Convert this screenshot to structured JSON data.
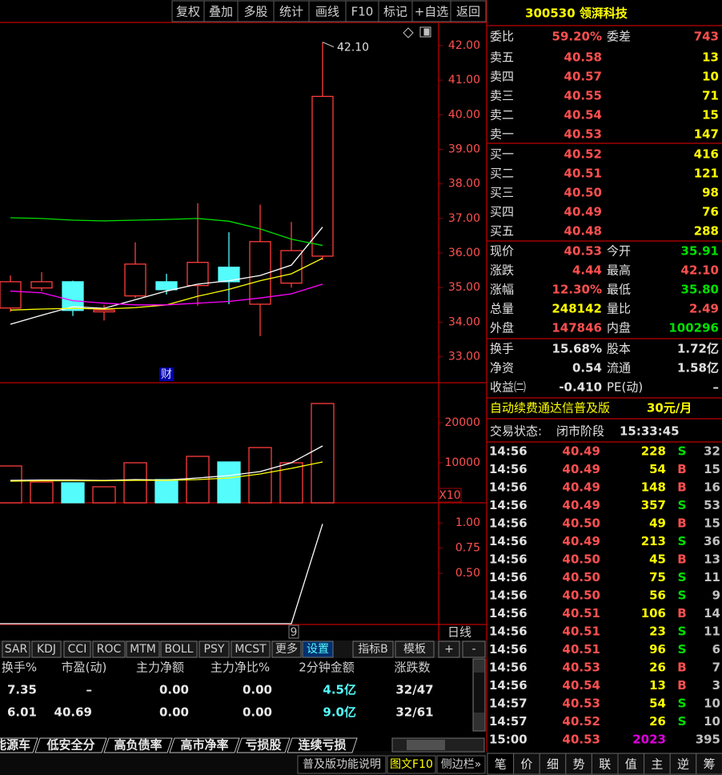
{
  "toolbar": [
    "复权",
    "叠加",
    "多股",
    "统计",
    "画线",
    "F10",
    "标记",
    "+自选",
    "返回"
  ],
  "kline": {
    "type": "candlestick",
    "high_label": "42.10",
    "event_marker": "财",
    "ylim": [
      32.25,
      42.67
    ],
    "yticks": [
      {
        "value": 42,
        "label": "42.00"
      },
      {
        "value": 41,
        "label": "41.00"
      },
      {
        "value": 40,
        "label": "40.00"
      },
      {
        "value": 39,
        "label": "39.00"
      },
      {
        "value": 38,
        "label": "38.00"
      },
      {
        "value": 37,
        "label": "37.00"
      },
      {
        "value": 36,
        "label": "36.00"
      },
      {
        "value": 35,
        "label": "35.00"
      },
      {
        "value": 34,
        "label": "34.00"
      },
      {
        "value": 33,
        "label": "33.00"
      }
    ],
    "up_color": "#ff3c3c",
    "down_color": "#54fcfc",
    "candles": [
      {
        "open": 34.41,
        "high": 35.35,
        "low": 34.3,
        "close": 35.17
      },
      {
        "open": 34.99,
        "high": 35.45,
        "low": 34.9,
        "close": 35.17
      },
      {
        "open": 35.17,
        "high": 35.2,
        "low": 34.18,
        "close": 34.34
      },
      {
        "open": 34.3,
        "high": 34.5,
        "low": 34.05,
        "close": 34.35
      },
      {
        "open": 34.76,
        "high": 36.31,
        "low": 34.7,
        "close": 35.68
      },
      {
        "open": 35.17,
        "high": 35.4,
        "low": 34.8,
        "close": 34.94
      },
      {
        "open": 35.06,
        "high": 37.44,
        "low": 34.48,
        "close": 35.73
      },
      {
        "open": 35.59,
        "high": 36.6,
        "low": 34.52,
        "close": 35.17
      },
      {
        "open": 34.52,
        "high": 37.4,
        "low": 33.6,
        "close": 36.33
      },
      {
        "open": 35.13,
        "high": 36.9,
        "low": 35.0,
        "close": 36.07
      },
      {
        "open": 35.91,
        "high": 42.1,
        "low": 35.8,
        "close": 40.53
      }
    ],
    "ma": [
      {
        "color": "#ffffff",
        "values": [
          33.94,
          34.2,
          34.45,
          34.4,
          34.65,
          34.9,
          35.1,
          35.2,
          35.35,
          35.65,
          36.75
        ]
      },
      {
        "color": "#ffff00",
        "values": [
          34.35,
          34.38,
          34.4,
          34.38,
          34.42,
          34.5,
          34.75,
          34.95,
          35.2,
          35.4,
          35.85
        ]
      },
      {
        "color": "#ff00ff",
        "values": [
          34.9,
          34.85,
          34.62,
          34.55,
          34.5,
          34.5,
          34.55,
          34.6,
          34.7,
          34.82,
          35.1
        ]
      },
      {
        "color": "#00e000",
        "values": [
          37.02,
          37.0,
          36.95,
          36.93,
          36.95,
          36.97,
          37.0,
          36.92,
          36.7,
          36.4,
          36.22
        ]
      }
    ]
  },
  "volume": {
    "type": "bar",
    "ylim": [
      0,
      30000
    ],
    "yticks": [
      20000,
      10000
    ],
    "scale_label": "X10",
    "values": [
      9200,
      5200,
      5000,
      4000,
      10000,
      5800,
      11600,
      10200,
      13800,
      10000,
      24800
    ],
    "ma": [
      {
        "color": "#ffffff",
        "values": [
          5600,
          5700,
          5700,
          5600,
          5800,
          5700,
          6200,
          6800,
          7800,
          10000,
          14200
        ]
      },
      {
        "color": "#ffff00",
        "values": [
          5400,
          5500,
          5500,
          5500,
          5600,
          5600,
          5800,
          6200,
          7200,
          8600,
          10200
        ]
      }
    ]
  },
  "indicator": {
    "type": "line",
    "ylim": [
      0,
      1.2
    ],
    "yticks": [
      {
        "value": 1,
        "label": "1.00"
      },
      {
        "value": 0.75,
        "label": "0.75"
      },
      {
        "value": 0.5,
        "label": "0.50"
      }
    ],
    "color": "#ffffff",
    "values": [
      0,
      0,
      0,
      0,
      0,
      0,
      0,
      0,
      0,
      0,
      0.99
    ],
    "cursor_label": "9",
    "period": "日线"
  },
  "indicator_tabs": [
    "SAR",
    "KDJ",
    "CCI",
    "ROC",
    "MTM",
    "BOLL",
    "PSY",
    "MCST",
    "更多",
    "设置",
    "指标B",
    "模板",
    "+",
    "-"
  ],
  "table": {
    "headers": [
      "换手%",
      "市盈(动)",
      "主力净额",
      "主力净比%",
      "2分钟金额",
      "涨跌数"
    ],
    "rows": [
      [
        "7.35",
        "–",
        "0.00",
        "0.00",
        "4.5亿",
        "32/47"
      ],
      [
        "6.01",
        "40.69",
        "0.00",
        "0.00",
        "9.0亿",
        "32/61"
      ]
    ]
  },
  "block_tabs": [
    "能源车",
    "低安全分",
    "高负债率",
    "高市净率",
    "亏损股",
    "连续亏损"
  ],
  "status_bar": [
    "普及版功能说明",
    "图文F10",
    "侧边栏»"
  ],
  "quote": {
    "title": "300530 领湃科技",
    "ratio": {
      "label": "委比",
      "value": "59.20%",
      "label2": "委差",
      "value2": "743"
    },
    "asks": [
      {
        "label": "卖五",
        "price": "40.58",
        "volume": "13"
      },
      {
        "label": "卖四",
        "price": "40.57",
        "volume": "10"
      },
      {
        "label": "卖三",
        "price": "40.55",
        "volume": "71"
      },
      {
        "label": "卖二",
        "price": "40.54",
        "volume": "15"
      },
      {
        "label": "卖一",
        "price": "40.53",
        "volume": "147"
      }
    ],
    "bids": [
      {
        "label": "买一",
        "price": "40.52",
        "volume": "416"
      },
      {
        "label": "买二",
        "price": "40.51",
        "volume": "121"
      },
      {
        "label": "买三",
        "price": "40.50",
        "volume": "98"
      },
      {
        "label": "买四",
        "price": "40.49",
        "volume": "76"
      },
      {
        "label": "买五",
        "price": "40.48",
        "volume": "288"
      }
    ],
    "stats": [
      {
        "label": "现价",
        "value": "40.53",
        "color": "#ff5050",
        "label2": "今开",
        "value2": "35.91",
        "color2": "#00e000"
      },
      {
        "label": "涨跌",
        "value": "4.44",
        "color": "#ff5050",
        "label2": "最高",
        "value2": "42.10",
        "color2": "#ff5050"
      },
      {
        "label": "涨幅",
        "value": "12.30%",
        "color": "#ff5050",
        "label2": "最低",
        "value2": "35.80",
        "color2": "#00e000"
      },
      {
        "label": "总量",
        "value": "248142",
        "color": "#ffff00",
        "label2": "量比",
        "value2": "2.49",
        "color2": "#ff5050"
      },
      {
        "label": "外盘",
        "value": "147846",
        "color": "#ff5050",
        "label2": "内盘",
        "value2": "100296",
        "color2": "#00e000"
      }
    ],
    "fundamentals": [
      {
        "label": "换手",
        "value": "15.68%",
        "label2": "股本",
        "value2": "1.72亿"
      },
      {
        "label": "净资",
        "value": "0.54",
        "label2": "流通",
        "value2": "1.58亿"
      },
      {
        "label": "收益㈡",
        "value": "-0.410",
        "label2": "PE(动)",
        "value2": "–"
      }
    ],
    "ad": "自动续费通达信普及版",
    "ad_price": "30元/月",
    "status_label": "交易状态:",
    "status": "闭市阶段",
    "status_time": "15:33:45",
    "ticks": [
      {
        "time": "14:56",
        "price": "40.49",
        "volume": "228",
        "side": "S",
        "count": "32"
      },
      {
        "time": "14:56",
        "price": "40.49",
        "volume": "54",
        "side": "B",
        "count": "15"
      },
      {
        "time": "14:56",
        "price": "40.49",
        "volume": "148",
        "side": "B",
        "count": "16"
      },
      {
        "time": "14:56",
        "price": "40.49",
        "volume": "357",
        "side": "S",
        "count": "53"
      },
      {
        "time": "14:56",
        "price": "40.50",
        "volume": "49",
        "side": "B",
        "count": "15"
      },
      {
        "time": "14:56",
        "price": "40.49",
        "volume": "213",
        "side": "S",
        "count": "36"
      },
      {
        "time": "14:56",
        "price": "40.50",
        "volume": "45",
        "side": "B",
        "count": "13"
      },
      {
        "time": "14:56",
        "price": "40.50",
        "volume": "75",
        "side": "S",
        "count": "11"
      },
      {
        "time": "14:56",
        "price": "40.50",
        "volume": "56",
        "side": "S",
        "count": "9"
      },
      {
        "time": "14:56",
        "price": "40.51",
        "volume": "106",
        "side": "B",
        "count": "14"
      },
      {
        "time": "14:56",
        "price": "40.51",
        "volume": "23",
        "side": "S",
        "count": "11"
      },
      {
        "time": "14:56",
        "price": "40.51",
        "volume": "96",
        "side": "S",
        "count": "6"
      },
      {
        "time": "14:56",
        "price": "40.53",
        "volume": "26",
        "side": "B",
        "count": "7"
      },
      {
        "time": "14:56",
        "price": "40.54",
        "volume": "13",
        "side": "B",
        "count": "3"
      },
      {
        "time": "14:57",
        "price": "40.53",
        "volume": "54",
        "side": "S",
        "count": "10"
      },
      {
        "time": "14:57",
        "price": "40.52",
        "volume": "26",
        "side": "S",
        "count": "10"
      },
      {
        "time": "15:00",
        "price": "40.53",
        "volume": "2023",
        "count": "395"
      }
    ],
    "tabs": [
      "笔",
      "价",
      "细",
      "势",
      "联",
      "值",
      "主",
      "逆",
      "筹"
    ]
  }
}
